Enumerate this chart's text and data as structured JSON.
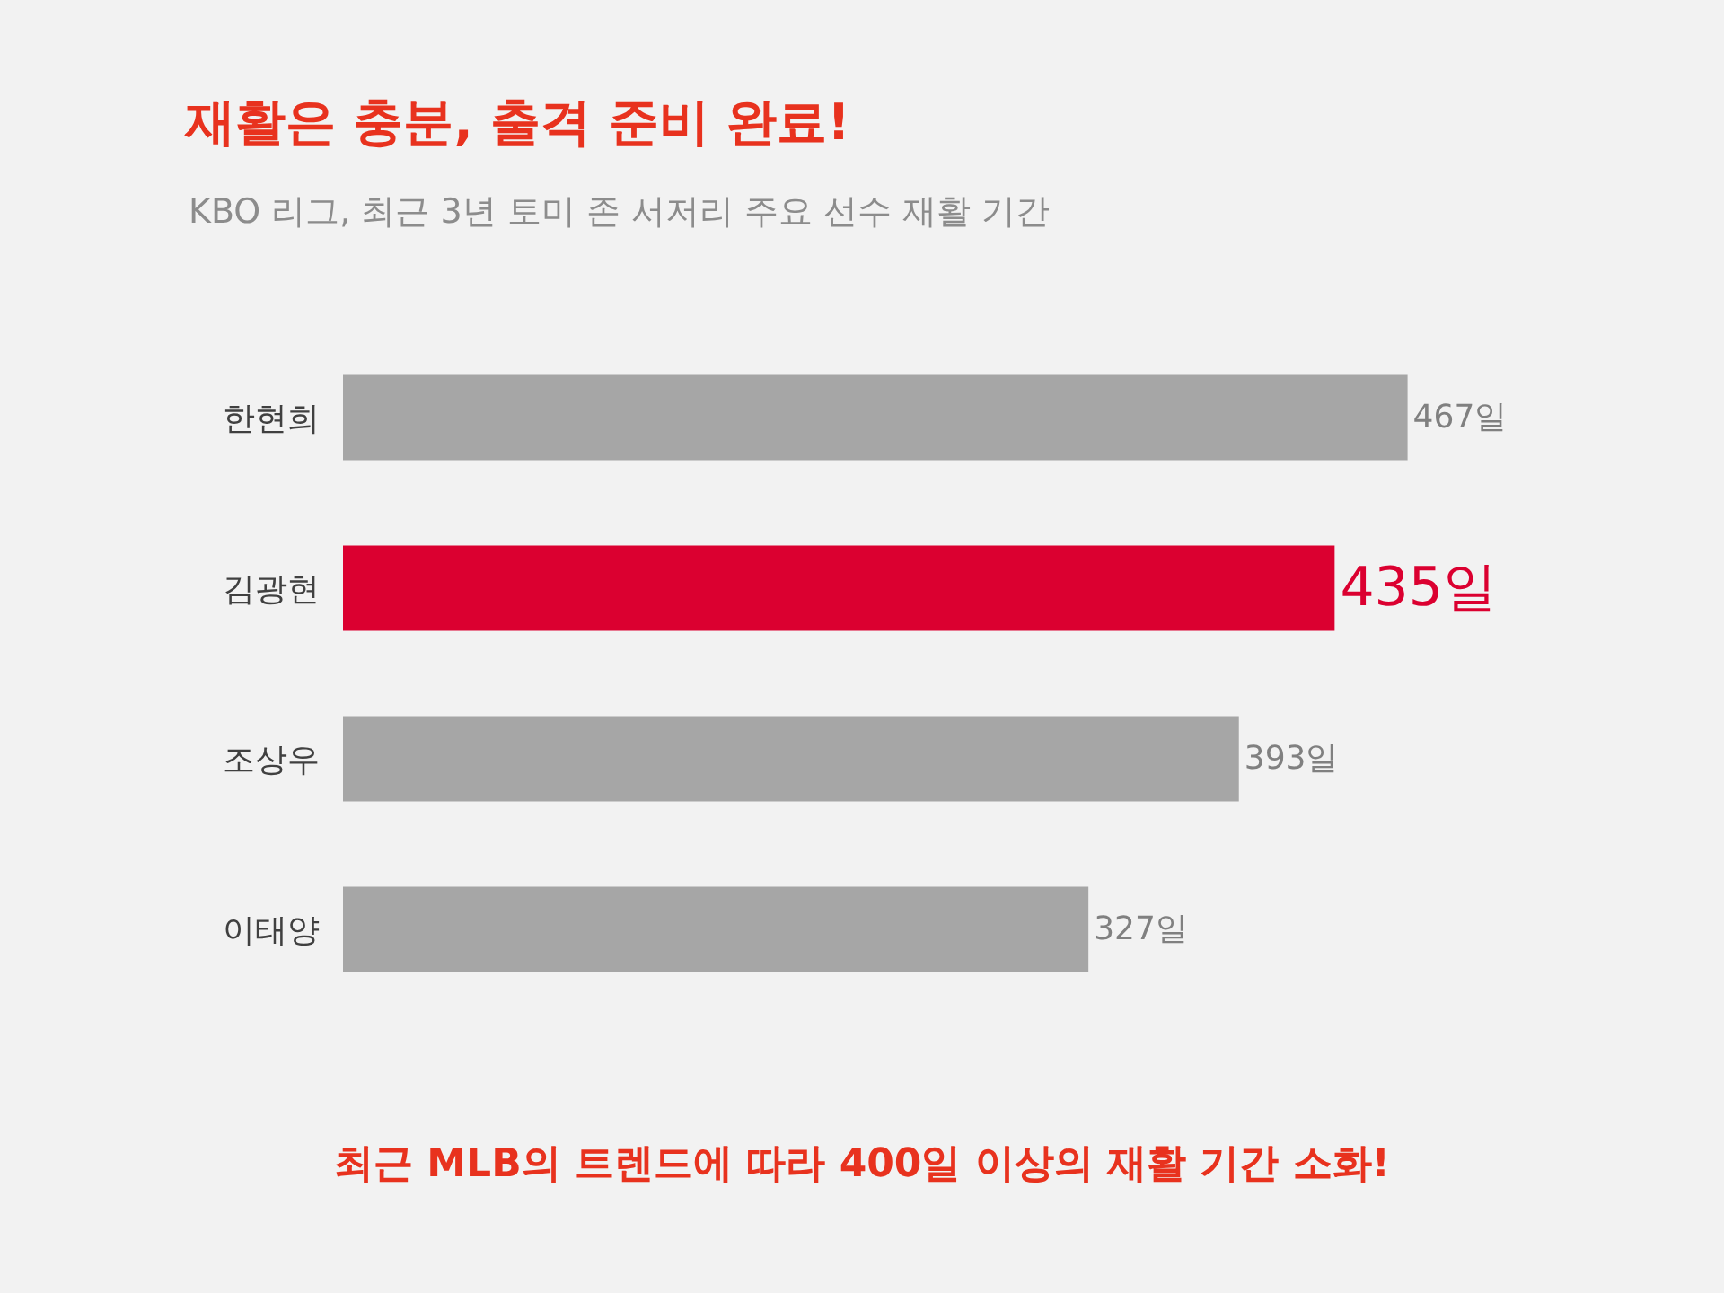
{
  "chart_data": {
    "type": "bar",
    "orientation": "horizontal",
    "title": "재활은 충분, 출격 준비 완료!",
    "subtitle": "KBO 리그, 최근 3년 토미 존 서저리 주요 선수 재활 기간",
    "categories": [
      "한현희",
      "김광현",
      "조상우",
      "이태양"
    ],
    "values": [
      467,
      435,
      393,
      327
    ],
    "colors": [
      "#a6a6a6",
      "#db0030",
      "#a6a6a6",
      "#a6a6a6"
    ],
    "value_labels": [
      "467일",
      "435일",
      "393일",
      "327일"
    ],
    "annotations": [
      "최근 MLB의 트렌드에 따라 400일 이상의 재활 기간 소화!"
    ]
  }
}
